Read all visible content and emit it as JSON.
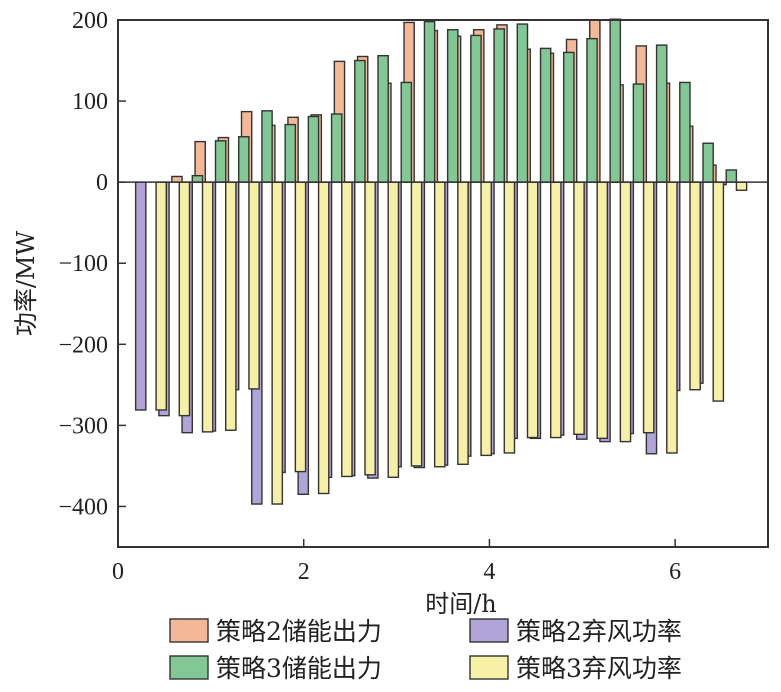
{
  "chart_data": {
    "type": "bar",
    "xlabel": "时间/h",
    "ylabel": "功率/MW",
    "xlim": [
      0,
      7
    ],
    "ylim": [
      -450,
      200
    ],
    "xticks": [
      0,
      2,
      4,
      6
    ],
    "xtick_labels": [
      "0",
      "2",
      "4",
      "6"
    ],
    "yticks": [
      200,
      100,
      0,
      -100,
      -200,
      -300,
      -400
    ],
    "ytick_labels": [
      "200",
      "100",
      "0",
      "−100",
      "−200",
      "−300",
      "−400"
    ],
    "bar_width": 0.11,
    "series": [
      {
        "name": "策略2储能出力",
        "color": "#f5b896",
        "offset": -0.165,
        "x": [
          0.3,
          0.55,
          0.8,
          1.05,
          1.3,
          1.55,
          1.8,
          2.05,
          2.3,
          2.55,
          2.8,
          3.05,
          3.3,
          3.55,
          3.8,
          4.05,
          4.3,
          4.55,
          4.8,
          5.05,
          5.3,
          5.55,
          5.8,
          6.05,
          6.3,
          6.55
        ],
        "values": [
          0,
          0,
          7,
          50,
          55,
          87,
          70,
          80,
          83,
          149,
          155,
          122,
          197,
          187,
          180,
          188,
          194,
          164,
          159,
          176,
          200,
          120,
          168,
          122,
          69,
          21
        ]
      },
      {
        "name": "策略2弃风功率",
        "color": "#b1a4d8",
        "offset": -0.055,
        "x": [
          0.3,
          0.55,
          0.8,
          1.05,
          1.3,
          1.55,
          1.8,
          2.05,
          2.3,
          2.55,
          2.8,
          3.05,
          3.3,
          3.55,
          3.8,
          4.05,
          4.3,
          4.55,
          4.8,
          5.05,
          5.3,
          5.55,
          5.8,
          6.05,
          6.3,
          6.55
        ],
        "values": [
          -281,
          -288,
          -309,
          -307,
          -256,
          -397,
          -358,
          -385,
          -364,
          -362,
          -365,
          -351,
          -352,
          -349,
          -338,
          -335,
          -316,
          -316,
          -312,
          -317,
          -320,
          -310,
          -335,
          -257,
          -248,
          -3
        ]
      },
      {
        "name": "策略3储能出力",
        "color": "#82c894",
        "offset": 0.055,
        "x": [
          0.3,
          0.55,
          0.8,
          1.05,
          1.3,
          1.55,
          1.8,
          2.05,
          2.3,
          2.55,
          2.8,
          3.05,
          3.3,
          3.55,
          3.8,
          4.05,
          4.3,
          4.55,
          4.8,
          5.05,
          5.3,
          5.55,
          5.8,
          6.05,
          6.3,
          6.55
        ],
        "values": [
          0,
          0,
          8,
          51,
          56,
          88,
          71,
          81,
          84,
          150,
          156,
          123,
          198,
          188,
          181,
          189,
          195,
          165,
          160,
          177,
          201,
          121,
          169,
          123,
          48,
          15
        ]
      },
      {
        "name": "策略3弃风功率",
        "color": "#f5f0a6",
        "offset": 0.165,
        "x": [
          0.3,
          0.55,
          0.8,
          1.05,
          1.3,
          1.55,
          1.8,
          2.05,
          2.3,
          2.55,
          2.8,
          3.05,
          3.3,
          3.55,
          3.8,
          4.05,
          4.3,
          4.55,
          4.8,
          5.05,
          5.3,
          5.55,
          5.8,
          6.05,
          6.3,
          6.55
        ],
        "values": [
          -281,
          -288,
          -308,
          -306,
          -255,
          -397,
          -357,
          -384,
          -363,
          -361,
          -364,
          -350,
          -351,
          -348,
          -337,
          -334,
          -315,
          -315,
          -311,
          -316,
          -320,
          -309,
          -334,
          -256,
          -270,
          -10
        ]
      }
    ],
    "legend": [
      {
        "label": "策略2储能出力",
        "color": "#f5b896"
      },
      {
        "label": "策略2弃风功率",
        "color": "#b1a4d8"
      },
      {
        "label": "策略3储能出力",
        "color": "#82c894"
      },
      {
        "label": "策略3弃风功率",
        "color": "#f5f0a6"
      }
    ],
    "legend_position": "bottom, two columns"
  }
}
